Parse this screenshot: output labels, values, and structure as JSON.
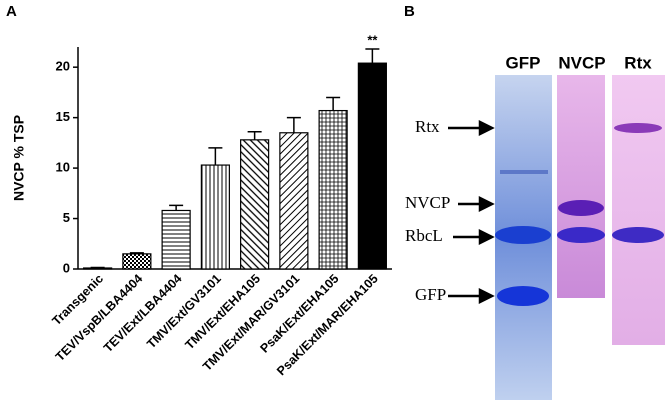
{
  "panel_labels": [
    "A",
    "B"
  ],
  "chart_data": {
    "type": "bar",
    "ylabel": "NVCP % TSP",
    "categories": [
      "Transgenic",
      "TEV/VspB/LBA4404",
      "TEV/Ext/LBA4404",
      "TMV/Ext/GV3101",
      "TMV/Ext/EHA105",
      "TMV/Ext/MAR/GV3101",
      "PsaK/Ext/EHA105",
      "PsaK/Ext/MAR/EHA105"
    ],
    "values": [
      0.1,
      1.5,
      5.8,
      10.3,
      12.8,
      13.5,
      15.7,
      20.4
    ],
    "errors": [
      0.05,
      0.1,
      0.5,
      1.7,
      0.8,
      1.5,
      1.3,
      1.4
    ],
    "annotation": "**",
    "ylim": [
      0,
      22
    ],
    "yticks": [
      0,
      5,
      10,
      15,
      20
    ]
  },
  "gel": {
    "lanes": [
      "GFP",
      "NVCP",
      "Rtx"
    ],
    "markers": [
      "Rtx",
      "NVCP",
      "RbcL",
      "GFP"
    ]
  }
}
